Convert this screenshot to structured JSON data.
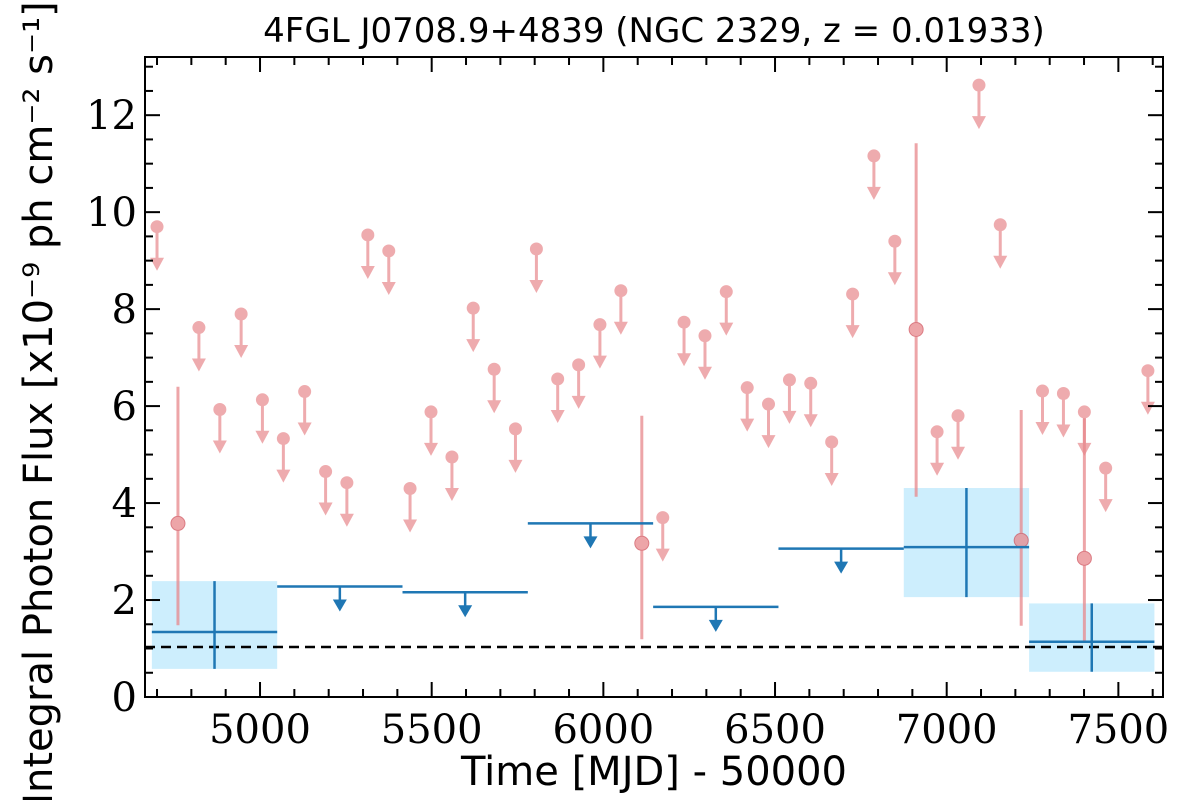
{
  "chart_data": {
    "type": "scatter",
    "title": "4FGL J0708.9+4839 (NGC 2329, z = 0.01933)",
    "xlabel": "Time [MJD] - 50000",
    "ylabel": "Integral Photon Flux [x10⁻⁹ ph cm⁻² s⁻¹]",
    "xlim": [
      4665,
      7630
    ],
    "ylim": [
      0,
      13.2
    ],
    "x_ticks": [
      5000,
      5500,
      6000,
      6500,
      7000,
      7500
    ],
    "y_ticks": [
      0,
      2,
      4,
      6,
      8,
      10,
      12
    ],
    "reference_line": {
      "y": 1.03,
      "style": "dashed",
      "color": "#000000"
    },
    "colors": {
      "short_bins": "#e8888c",
      "long_bins": "#1f77b4",
      "long_bins_fill": "#cdeefd"
    },
    "series": [
      {
        "style": "short-bin upper limits",
        "points": [
          {
            "x": 4700,
            "y": 9.7
          },
          {
            "x": 4822,
            "y": 7.62
          },
          {
            "x": 4883,
            "y": 5.93
          },
          {
            "x": 4945,
            "y": 7.9
          },
          {
            "x": 5007,
            "y": 6.13
          },
          {
            "x": 5068,
            "y": 5.33
          },
          {
            "x": 5130,
            "y": 6.3
          },
          {
            "x": 5191,
            "y": 4.65
          },
          {
            "x": 5253,
            "y": 4.42
          },
          {
            "x": 5314,
            "y": 9.53
          },
          {
            "x": 5375,
            "y": 9.2
          },
          {
            "x": 5437,
            "y": 4.3
          },
          {
            "x": 5498,
            "y": 5.88
          },
          {
            "x": 5559,
            "y": 4.95
          },
          {
            "x": 5621,
            "y": 8.02
          },
          {
            "x": 5682,
            "y": 6.76
          },
          {
            "x": 5744,
            "y": 5.53
          },
          {
            "x": 5805,
            "y": 9.24
          },
          {
            "x": 5867,
            "y": 6.56
          },
          {
            "x": 5928,
            "y": 6.85
          },
          {
            "x": 5990,
            "y": 7.68
          },
          {
            "x": 6051,
            "y": 8.38
          },
          {
            "x": 6173,
            "y": 3.7
          },
          {
            "x": 6235,
            "y": 7.73
          },
          {
            "x": 6296,
            "y": 7.45
          },
          {
            "x": 6358,
            "y": 8.36
          },
          {
            "x": 6419,
            "y": 6.38
          },
          {
            "x": 6481,
            "y": 6.04
          },
          {
            "x": 6542,
            "y": 6.54
          },
          {
            "x": 6604,
            "y": 6.47
          },
          {
            "x": 6665,
            "y": 5.26
          },
          {
            "x": 6726,
            "y": 8.31
          },
          {
            "x": 6788,
            "y": 11.16
          },
          {
            "x": 6849,
            "y": 9.4
          },
          {
            "x": 6972,
            "y": 5.47
          },
          {
            "x": 7033,
            "y": 5.8
          },
          {
            "x": 7094,
            "y": 12.62
          },
          {
            "x": 7156,
            "y": 9.74
          },
          {
            "x": 7279,
            "y": 6.31
          },
          {
            "x": 7340,
            "y": 6.26
          },
          {
            "x": 7401,
            "y": 5.88
          },
          {
            "x": 7463,
            "y": 4.72
          },
          {
            "x": 7586,
            "y": 6.73
          }
        ]
      },
      {
        "style": "short-bin detections",
        "points": [
          {
            "x": 4761,
            "y": 3.58,
            "ylo": 1.48,
            "yhi": 6.4
          },
          {
            "x": 6112,
            "y": 3.17,
            "ylo": 1.19,
            "yhi": 5.8
          },
          {
            "x": 6911,
            "y": 7.58,
            "ylo": 4.13,
            "yhi": 11.42
          },
          {
            "x": 7217,
            "y": 3.23,
            "ylo": 1.47,
            "yhi": 5.92
          },
          {
            "x": 7401,
            "y": 2.86,
            "ylo": 1.12,
            "yhi": 5.75
          }
        ]
      },
      {
        "style": "long-bin upper limits",
        "points": [
          {
            "x0": 5050,
            "x1": 5415,
            "y": 2.28
          },
          {
            "x0": 5415,
            "x1": 5780,
            "y": 2.16
          },
          {
            "x0": 5780,
            "x1": 6145,
            "y": 3.58
          },
          {
            "x0": 6145,
            "x1": 6510,
            "y": 1.86
          },
          {
            "x0": 6510,
            "x1": 6875,
            "y": 3.06
          }
        ]
      },
      {
        "style": "long-bin detections",
        "points": [
          {
            "x0": 4685,
            "x1": 5050,
            "y": 1.34,
            "ylo": 0.58,
            "yhi": 2.39
          },
          {
            "x0": 6875,
            "x1": 7240,
            "y": 3.09,
            "ylo": 2.06,
            "yhi": 4.31
          },
          {
            "x0": 7240,
            "x1": 7605,
            "y": 1.14,
            "ylo": 0.52,
            "yhi": 1.93
          }
        ]
      }
    ]
  }
}
